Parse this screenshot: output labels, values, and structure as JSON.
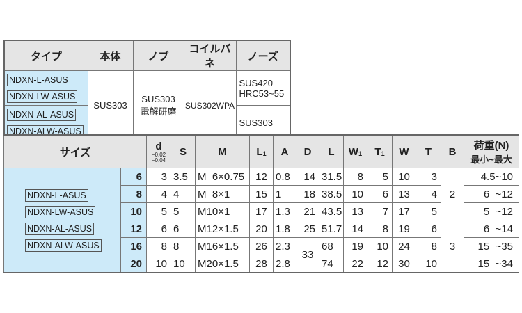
{
  "materials": {
    "headers": [
      "タイプ",
      "本体",
      "ノブ",
      "コイルバネ",
      "ノーズ"
    ],
    "types": [
      "NDXN-L-ASUS",
      "NDXN-LW-ASUS",
      "NDXN-AL-ASUS",
      "NDXN-ALW-ASUS"
    ],
    "body": "SUS303",
    "knob": "SUS303",
    "knob_note": "電解研磨",
    "spring": "SUS302WPA",
    "nose_a1": "SUS420",
    "nose_a2": "HRC53~55",
    "nose_b": "SUS303"
  },
  "sizes": {
    "headers": {
      "size": "サイズ",
      "d": "d",
      "d_tol_upper": "−0.02",
      "d_tol_lower": "−0.04",
      "S": "S",
      "M": "M",
      "L1": "L",
      "L1_sub": "1",
      "A": "A",
      "D": "D",
      "L": "L",
      "W1": "W",
      "W1_sub": "1",
      "T1": "T",
      "T1_sub": "1",
      "W": "W",
      "T": "T",
      "B": "B",
      "load1": "荷重(N)",
      "load2": "最小~最大"
    },
    "types": [
      "NDXN-L-ASUS",
      "NDXN-LW-ASUS",
      "NDXN-AL-ASUS",
      "NDXN-ALW-ASUS"
    ],
    "rows": [
      {
        "size": "6",
        "d": "3",
        "S": "3.5",
        "M": "M  6×0.75",
        "L1": "12",
        "A": "0.8",
        "D": "14",
        "L": "31.5",
        "W1": "8",
        "T1": "5",
        "W": "10",
        "T": "3",
        "load": "4.5~10"
      },
      {
        "size": "8",
        "d": "4",
        "S": "4",
        "M": "M  8×1",
        "L1": "15",
        "A": "1",
        "D": "18",
        "L": "38.5",
        "W1": "10",
        "T1": "6",
        "W": "13",
        "T": "4",
        "load": "6  ~12"
      },
      {
        "size": "10",
        "d": "5",
        "S": "5",
        "M": "M10×1",
        "L1": "17",
        "A": "1.3",
        "D": "21",
        "L": "43.5",
        "W1": "13",
        "T1": "7",
        "W": "17",
        "T": "5",
        "load": "5  ~12"
      },
      {
        "size": "12",
        "d": "6",
        "S": "6",
        "M": "M12×1.5",
        "L1": "20",
        "A": "1.8",
        "D": "25",
        "L": "51.7",
        "W1": "14",
        "T1": "8",
        "W": "19",
        "T": "6",
        "load": "6  ~14"
      },
      {
        "size": "16",
        "d": "8",
        "S": "8",
        "M": "M16×1.5",
        "L1": "26",
        "A": "2.3",
        "D": "33",
        "L": "68",
        "W1": "19",
        "T1": "10",
        "W": "24",
        "T": "8",
        "load": "15  ~35"
      },
      {
        "size": "20",
        "d": "10",
        "S": "10",
        "M": "M20×1.5",
        "L1": "28",
        "A": "2.8",
        "L": "74",
        "W1": "22",
        "T1": "12",
        "W": "30",
        "T": "10",
        "load": "15  ~34"
      }
    ],
    "B_group1": "2",
    "B_group2": "3"
  }
}
